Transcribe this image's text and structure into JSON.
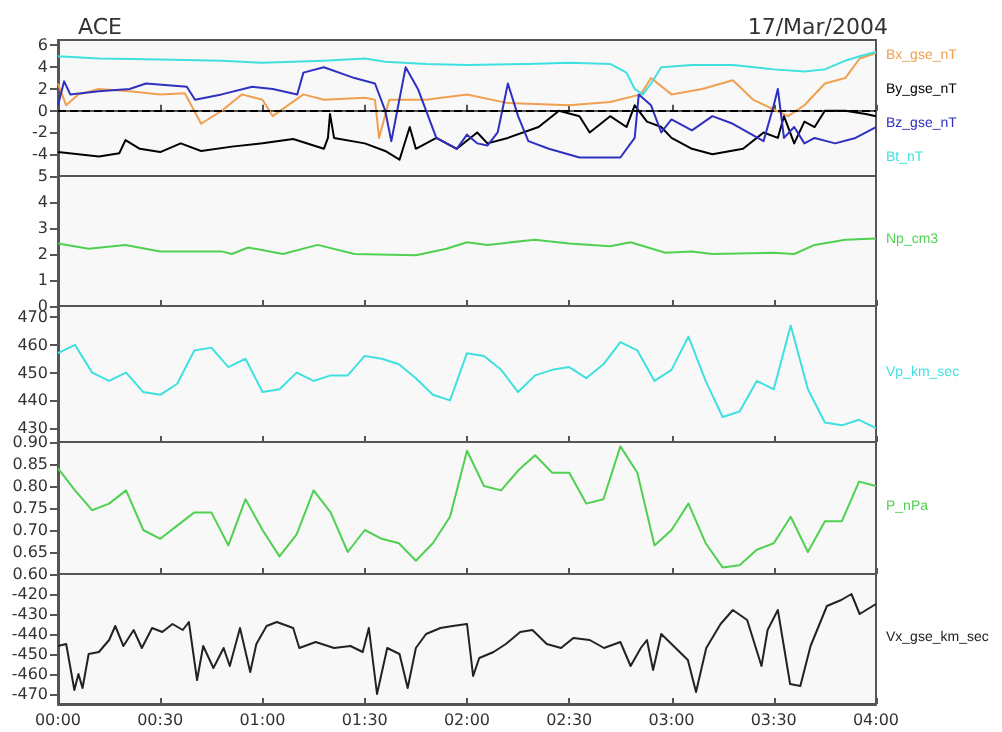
{
  "chart_data": [
    {
      "type": "line",
      "title": "ACE",
      "subtitle": "17/Mar/2004",
      "xlim": [
        0,
        4
      ],
      "xticks": [
        {
          "value": 0,
          "label": null
        },
        {
          "value": 0.5,
          "label": null
        },
        {
          "value": 1,
          "label": null
        },
        {
          "value": 1.5,
          "label": null
        },
        {
          "value": 2,
          "label": null
        },
        {
          "value": 2.5,
          "label": null
        },
        {
          "value": 3,
          "label": null
        },
        {
          "value": 3.5,
          "label": null
        },
        {
          "value": 4,
          "label": null
        }
      ],
      "ylim": [
        -6,
        6.5
      ],
      "yticks": [
        -4,
        -2,
        0,
        2,
        4,
        6
      ],
      "tick_labels": "y",
      "ref_lines": [
        {
          "axis": "y",
          "value": 0,
          "color": "#000000",
          "line_style": "dashed"
        }
      ],
      "series": [
        {
          "name": "Bx_gse_nT",
          "color": "#f0a050",
          "x": [
            0,
            0.04,
            0.1,
            0.2,
            0.35,
            0.5,
            0.62,
            0.7,
            0.8,
            0.9,
            1.0,
            1.05,
            1.2,
            1.3,
            1.5,
            1.55,
            1.57,
            1.62,
            1.8,
            2.0,
            2.2,
            2.5,
            2.7,
            2.85,
            2.9,
            3.0,
            3.15,
            3.3,
            3.4,
            3.57,
            3.65,
            3.75,
            3.85,
            3.92,
            4.0
          ],
          "values": [
            2.5,
            0.5,
            1.5,
            2.0,
            1.8,
            1.5,
            1.6,
            -1.2,
            0.0,
            1.5,
            1.0,
            -0.5,
            1.5,
            1.0,
            1.2,
            1.0,
            -2.5,
            1.0,
            1.0,
            1.5,
            0.7,
            0.5,
            0.8,
            1.5,
            3.0,
            1.5,
            2.0,
            2.8,
            1.0,
            -0.5,
            0.5,
            2.5,
            3.0,
            4.8,
            5.3
          ]
        },
        {
          "name": "By_gse_nT",
          "color": "#000000",
          "x": [
            0,
            0.2,
            0.3,
            0.33,
            0.4,
            0.5,
            0.6,
            0.7,
            0.85,
            1.0,
            1.15,
            1.3,
            1.32,
            1.33,
            1.35,
            1.5,
            1.6,
            1.67,
            1.72,
            1.75,
            1.85,
            1.95,
            2.05,
            2.1,
            2.2,
            2.35,
            2.45,
            2.55,
            2.6,
            2.7,
            2.78,
            2.82,
            2.88,
            2.95,
            3.0,
            3.1,
            3.2,
            3.35,
            3.45,
            3.52,
            3.55,
            3.6,
            3.65,
            3.7,
            3.75,
            3.85,
            3.95,
            4.0
          ],
          "values": [
            -3.8,
            -4.2,
            -3.9,
            -2.7,
            -3.5,
            -3.8,
            -3.0,
            -3.7,
            -3.3,
            -3.0,
            -2.6,
            -3.5,
            -2.5,
            -0.3,
            -2.5,
            -3.0,
            -3.7,
            -4.5,
            -1.5,
            -3.5,
            -2.5,
            -3.5,
            -2.0,
            -3.0,
            -2.5,
            -1.5,
            0.0,
            -0.5,
            -2.0,
            -0.5,
            -1.5,
            0.5,
            -1.0,
            -1.5,
            -2.5,
            -3.5,
            -4.0,
            -3.5,
            -2.0,
            -2.5,
            -0.5,
            -3.0,
            -1.0,
            -1.5,
            0.0,
            0.0,
            -0.3,
            -0.5
          ]
        },
        {
          "name": "Bz_gse_nT",
          "color": "#3030c0",
          "x": [
            0,
            0.03,
            0.06,
            0.2,
            0.35,
            0.43,
            0.63,
            0.67,
            0.8,
            0.95,
            1.05,
            1.17,
            1.2,
            1.3,
            1.45,
            1.55,
            1.6,
            1.63,
            1.7,
            1.76,
            1.8,
            1.85,
            1.95,
            2.0,
            2.05,
            2.1,
            2.15,
            2.2,
            2.25,
            2.3,
            2.4,
            2.55,
            2.75,
            2.82,
            2.84,
            2.9,
            2.95,
            3.0,
            3.1,
            3.2,
            3.3,
            3.45,
            3.5,
            3.52,
            3.55,
            3.6,
            3.65,
            3.7,
            3.8,
            3.9,
            4.0
          ],
          "values": [
            0.5,
            2.7,
            1.5,
            1.8,
            2.0,
            2.5,
            2.2,
            1.0,
            1.5,
            2.2,
            2.0,
            1.5,
            3.5,
            4.0,
            3.0,
            2.5,
            0.0,
            -2.8,
            4.0,
            2.0,
            0.0,
            -2.5,
            -3.5,
            -2.2,
            -3.0,
            -3.2,
            -2.0,
            2.5,
            -0.5,
            -2.8,
            -3.5,
            -4.3,
            -4.3,
            -2.5,
            1.5,
            0.5,
            -2.0,
            -0.8,
            -1.8,
            -0.5,
            -1.2,
            -2.8,
            0.5,
            2.0,
            -2.5,
            -1.5,
            -3.0,
            -2.5,
            -3.0,
            -2.5,
            -1.5
          ]
        },
        {
          "name": "Bt_nT",
          "color": "#40e0e0",
          "x": [
            0,
            0.2,
            0.5,
            0.8,
            1.0,
            1.3,
            1.5,
            1.6,
            1.8,
            2.0,
            2.3,
            2.5,
            2.7,
            2.78,
            2.82,
            2.86,
            2.9,
            2.95,
            3.1,
            3.3,
            3.5,
            3.65,
            3.75,
            3.85,
            3.92,
            4.0
          ],
          "values": [
            5.0,
            4.8,
            4.7,
            4.6,
            4.4,
            4.6,
            4.8,
            4.5,
            4.3,
            4.2,
            4.3,
            4.4,
            4.3,
            3.5,
            2.0,
            1.5,
            2.5,
            4.0,
            4.2,
            4.2,
            3.8,
            3.6,
            3.8,
            4.6,
            5.0,
            5.4
          ]
        }
      ]
    },
    {
      "type": "line",
      "xlim": [
        0,
        4
      ],
      "xticks": [
        {
          "value": 0,
          "label": null
        },
        {
          "value": 0.5,
          "label": null
        },
        {
          "value": 1,
          "label": null
        },
        {
          "value": 1.5,
          "label": null
        },
        {
          "value": 2,
          "label": null
        },
        {
          "value": 2.5,
          "label": null
        },
        {
          "value": 3,
          "label": null
        },
        {
          "value": 3.5,
          "label": null
        },
        {
          "value": 4,
          "label": null
        }
      ],
      "ylim": [
        0,
        5
      ],
      "yticks": [
        0,
        1,
        2,
        3,
        4,
        5
      ],
      "tick_labels": "y",
      "series": [
        {
          "name": "Np_cm3",
          "color": "#50d050",
          "x": [
            0,
            0.15,
            0.33,
            0.5,
            0.8,
            0.85,
            0.93,
            1.1,
            1.27,
            1.45,
            1.75,
            1.9,
            2.0,
            2.1,
            2.33,
            2.5,
            2.7,
            2.8,
            2.97,
            3.1,
            3.2,
            3.5,
            3.6,
            3.7,
            3.85,
            4.0
          ],
          "values": [
            2.4,
            2.2,
            2.35,
            2.1,
            2.1,
            2.0,
            2.25,
            2.0,
            2.35,
            2.0,
            1.95,
            2.2,
            2.45,
            2.35,
            2.55,
            2.4,
            2.3,
            2.45,
            2.05,
            2.1,
            2.0,
            2.05,
            2.0,
            2.35,
            2.55,
            2.6
          ]
        }
      ]
    },
    {
      "type": "line",
      "xlim": [
        0,
        4
      ],
      "xticks": [
        {
          "value": 0,
          "label": null
        },
        {
          "value": 0.5,
          "label": null
        },
        {
          "value": 1,
          "label": null
        },
        {
          "value": 1.5,
          "label": null
        },
        {
          "value": 2,
          "label": null
        },
        {
          "value": 2.5,
          "label": null
        },
        {
          "value": 3,
          "label": null
        },
        {
          "value": 3.5,
          "label": null
        },
        {
          "value": 4,
          "label": null
        }
      ],
      "ylim": [
        425,
        474
      ],
      "yticks": [
        430,
        440,
        450,
        460,
        470
      ],
      "tick_labels": "y",
      "series": [
        {
          "name": "Vp_km_sec",
          "color": "#40e0e0",
          "x": [
            0,
            0.083,
            0.167,
            0.25,
            0.333,
            0.417,
            0.5,
            0.583,
            0.667,
            0.75,
            0.833,
            0.917,
            1,
            1.083,
            1.167,
            1.25,
            1.333,
            1.417,
            1.5,
            1.583,
            1.667,
            1.75,
            1.833,
            1.917,
            2,
            2.083,
            2.167,
            2.25,
            2.333,
            2.417,
            2.5,
            2.583,
            2.667,
            2.75,
            2.833,
            2.917,
            3,
            3.083,
            3.167,
            3.25,
            3.333,
            3.417,
            3.5,
            3.583,
            3.667,
            3.75,
            3.833,
            3.917,
            4
          ],
          "values": [
            457,
            460,
            450,
            447,
            450,
            443,
            442,
            446,
            458,
            459,
            452,
            455,
            443,
            444,
            450,
            447,
            449,
            449,
            456,
            455,
            453,
            448,
            442,
            440,
            457,
            456,
            451,
            443,
            449,
            451,
            452,
            448,
            453,
            461,
            458,
            447,
            451,
            463,
            447,
            434,
            436,
            447,
            444,
            467,
            444,
            432,
            431,
            433,
            430
          ]
        }
      ]
    },
    {
      "type": "line",
      "xlim": [
        0,
        4
      ],
      "xticks": [
        {
          "value": 0,
          "label": null
        },
        {
          "value": 0.5,
          "label": null
        },
        {
          "value": 1,
          "label": null
        },
        {
          "value": 1.5,
          "label": null
        },
        {
          "value": 2,
          "label": null
        },
        {
          "value": 2.5,
          "label": null
        },
        {
          "value": 3,
          "label": null
        },
        {
          "value": 3.5,
          "label": null
        },
        {
          "value": 4,
          "label": null
        }
      ],
      "ylim": [
        0.6,
        0.9
      ],
      "yticks": [
        {
          "value": 0.6,
          "label": "0.60"
        },
        {
          "value": 0.65,
          "label": "0.65"
        },
        {
          "value": 0.7,
          "label": "0.70"
        },
        {
          "value": 0.75,
          "label": "0.75"
        },
        {
          "value": 0.8,
          "label": "0.80"
        },
        {
          "value": 0.85,
          "label": "0.85"
        },
        {
          "value": 0.9,
          "label": "0.90"
        }
      ],
      "tick_labels": "y",
      "series": [
        {
          "name": "P_nPa",
          "color": "#50d050",
          "x": [
            0,
            0.083,
            0.167,
            0.25,
            0.333,
            0.417,
            0.5,
            0.583,
            0.667,
            0.75,
            0.833,
            0.917,
            1,
            1.083,
            1.167,
            1.25,
            1.333,
            1.417,
            1.5,
            1.583,
            1.667,
            1.75,
            1.833,
            1.917,
            2,
            2.083,
            2.167,
            2.25,
            2.333,
            2.417,
            2.5,
            2.583,
            2.667,
            2.75,
            2.833,
            2.917,
            3,
            3.083,
            3.167,
            3.25,
            3.333,
            3.417,
            3.5,
            3.583,
            3.667,
            3.75,
            3.833,
            3.917,
            4
          ],
          "values": [
            0.84,
            0.79,
            0.745,
            0.76,
            0.79,
            0.7,
            0.68,
            0.71,
            0.74,
            0.74,
            0.665,
            0.77,
            0.7,
            0.64,
            0.69,
            0.79,
            0.74,
            0.65,
            0.7,
            0.68,
            0.67,
            0.63,
            0.67,
            0.73,
            0.88,
            0.8,
            0.79,
            0.835,
            0.87,
            0.83,
            0.83,
            0.76,
            0.77,
            0.89,
            0.83,
            0.665,
            0.7,
            0.76,
            0.67,
            0.615,
            0.62,
            0.655,
            0.67,
            0.73,
            0.65,
            0.72,
            0.72,
            0.81,
            0.8
          ]
        }
      ]
    },
    {
      "type": "line",
      "xlim": [
        0,
        4
      ],
      "xticks": [
        {
          "value": 0,
          "label": "00:00"
        },
        {
          "value": 0.5,
          "label": "00:30"
        },
        {
          "value": 1,
          "label": "01:00"
        },
        {
          "value": 1.5,
          "label": "01:30"
        },
        {
          "value": 2,
          "label": "02:00"
        },
        {
          "value": 2.5,
          "label": "02:30"
        },
        {
          "value": 3,
          "label": "03:00"
        },
        {
          "value": 3.5,
          "label": "03:30"
        },
        {
          "value": 4,
          "label": "04:00"
        }
      ],
      "ylim": [
        -475,
        -410
      ],
      "yticks": [
        -470,
        -460,
        -450,
        -440,
        -430,
        -420
      ],
      "series": [
        {
          "name": "Vx_gse_km_sec",
          "color": "#222222",
          "x": [
            0,
            0.04,
            0.08,
            0.1,
            0.12,
            0.15,
            0.2,
            0.25,
            0.28,
            0.32,
            0.37,
            0.41,
            0.46,
            0.51,
            0.56,
            0.61,
            0.64,
            0.68,
            0.71,
            0.76,
            0.81,
            0.84,
            0.89,
            0.94,
            0.97,
            1.02,
            1.07,
            1.15,
            1.18,
            1.26,
            1.35,
            1.43,
            1.49,
            1.52,
            1.56,
            1.61,
            1.67,
            1.71,
            1.75,
            1.8,
            1.87,
            1.93,
            2.0,
            2.03,
            2.06,
            2.13,
            2.19,
            2.26,
            2.32,
            2.39,
            2.46,
            2.52,
            2.6,
            2.67,
            2.75,
            2.8,
            2.85,
            2.88,
            2.91,
            2.95,
            3.01,
            3.08,
            3.12,
            3.17,
            3.24,
            3.3,
            3.37,
            3.44,
            3.47,
            3.52,
            3.58,
            3.63,
            3.68,
            3.76,
            3.83,
            3.88,
            3.92,
            4.0
          ],
          "values": [
            -446,
            -445,
            -468,
            -460,
            -467,
            -450,
            -449,
            -443,
            -436,
            -446,
            -438,
            -447,
            -437,
            -439,
            -435,
            -438,
            -434,
            -463,
            -446,
            -457,
            -447,
            -456,
            -437,
            -459,
            -445,
            -436,
            -434,
            -437,
            -447,
            -444,
            -447,
            -446,
            -449,
            -437,
            -470,
            -447,
            -450,
            -467,
            -447,
            -440,
            -437,
            -436,
            -435,
            -461,
            -452,
            -449,
            -445,
            -439,
            -438,
            -445,
            -447,
            -442,
            -443,
            -447,
            -444,
            -456,
            -447,
            -443,
            -458,
            -440,
            -446,
            -453,
            -469,
            -447,
            -435,
            -428,
            -433,
            -456,
            -438,
            -428,
            -465,
            -466,
            -446,
            -426,
            -423,
            -420,
            -430,
            -425
          ]
        }
      ]
    }
  ]
}
